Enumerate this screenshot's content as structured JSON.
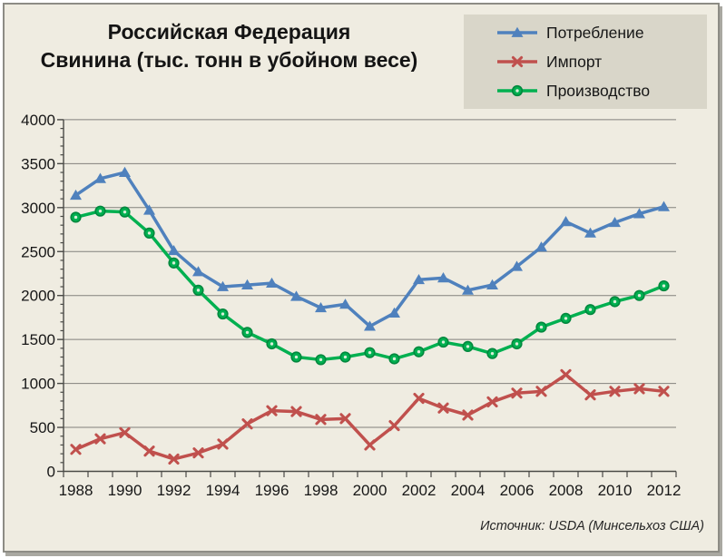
{
  "chart_data": {
    "type": "line",
    "title_line1": "Российская Федерация",
    "title_line2": "Свинина (тыс. тонн в убойном весе)",
    "title": "Российская Федерация Свинина (тыс. тонн в убойном весе)",
    "source": "Источник: USDA (Минсельхоз США)",
    "x": [
      1988,
      1989,
      1990,
      1991,
      1992,
      1993,
      1994,
      1995,
      1996,
      1997,
      1998,
      1999,
      2000,
      2001,
      2002,
      2003,
      2004,
      2005,
      2006,
      2007,
      2008,
      2009,
      2010,
      2011,
      2012
    ],
    "x_tick_labels": [
      "1988",
      "1990",
      "1992",
      "1994",
      "1996",
      "1998",
      "2000",
      "2002",
      "2004",
      "2006",
      "2008",
      "2010",
      "2012"
    ],
    "ylim": [
      0,
      4000
    ],
    "y_major_step": 500,
    "y_minor_step": 100,
    "grid": "horizontal-major",
    "legend_position": "top-right",
    "background_color": "#EFECE1",
    "legend_background_color": "#D9D6C9",
    "gridline_color": "#82817C",
    "axis_color": "#4A4A46",
    "series": [
      {
        "name": "Потребление",
        "color": "#4F81BD",
        "marker": "triangle",
        "values": [
          3140,
          3330,
          3400,
          2970,
          2510,
          2270,
          2100,
          2120,
          2140,
          1990,
          1860,
          1900,
          1650,
          1800,
          2180,
          2200,
          2060,
          2120,
          2330,
          2550,
          2840,
          2710,
          2830,
          2930,
          3010
        ]
      },
      {
        "name": "Импорт",
        "color": "#C0504D",
        "marker": "x",
        "values": [
          250,
          370,
          440,
          230,
          140,
          210,
          310,
          540,
          690,
          680,
          590,
          600,
          300,
          520,
          830,
          720,
          640,
          790,
          890,
          910,
          1100,
          870,
          910,
          940,
          910
        ]
      },
      {
        "name": "Производство",
        "color": "#00B050",
        "marker": "circle",
        "marker_ring": "#00873D",
        "marker_dot": "#D8EED8",
        "values": [
          2890,
          2960,
          2950,
          2710,
          2370,
          2060,
          1790,
          1580,
          1450,
          1300,
          1270,
          1300,
          1350,
          1280,
          1360,
          1470,
          1420,
          1340,
          1450,
          1640,
          1740,
          1840,
          1930,
          2000,
          2110
        ]
      }
    ]
  }
}
